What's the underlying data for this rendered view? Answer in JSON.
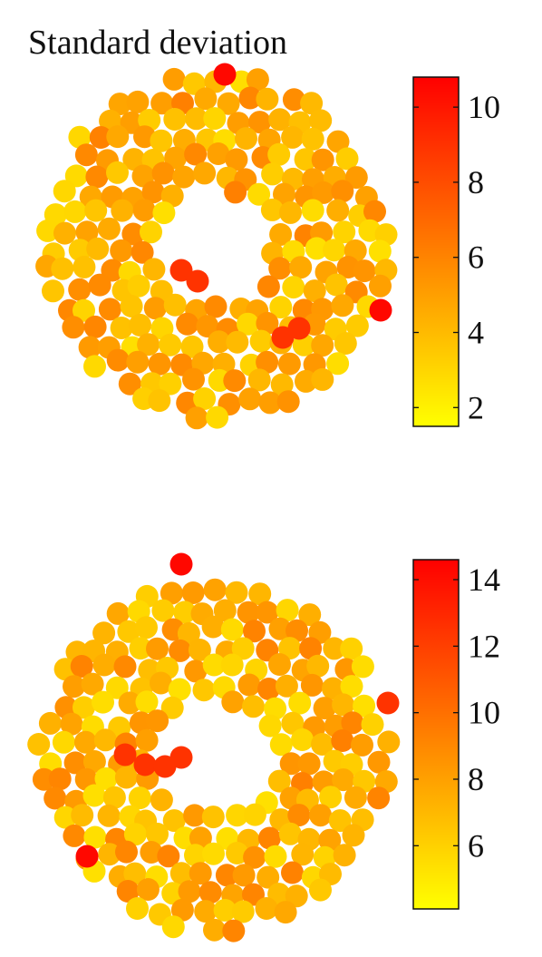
{
  "title": "Standard deviation",
  "chart_data": [
    {
      "type": "scatter",
      "title": "Standard deviation",
      "description_of_marks": "Disks arranged in an annulus, colored by standard deviation value",
      "colormap": [
        "#ffff00",
        "#ff0000"
      ],
      "colorbar": {
        "range": [
          1.5,
          10.8
        ],
        "ticks": [
          2,
          4,
          6,
          8,
          10
        ]
      }
    },
    {
      "type": "scatter",
      "title": "",
      "colormap": [
        "#ffff00",
        "#ff0000"
      ],
      "colorbar": {
        "range": [
          4.1,
          14.6
        ],
        "ticks": [
          6,
          8,
          10,
          12,
          14
        ]
      }
    }
  ]
}
